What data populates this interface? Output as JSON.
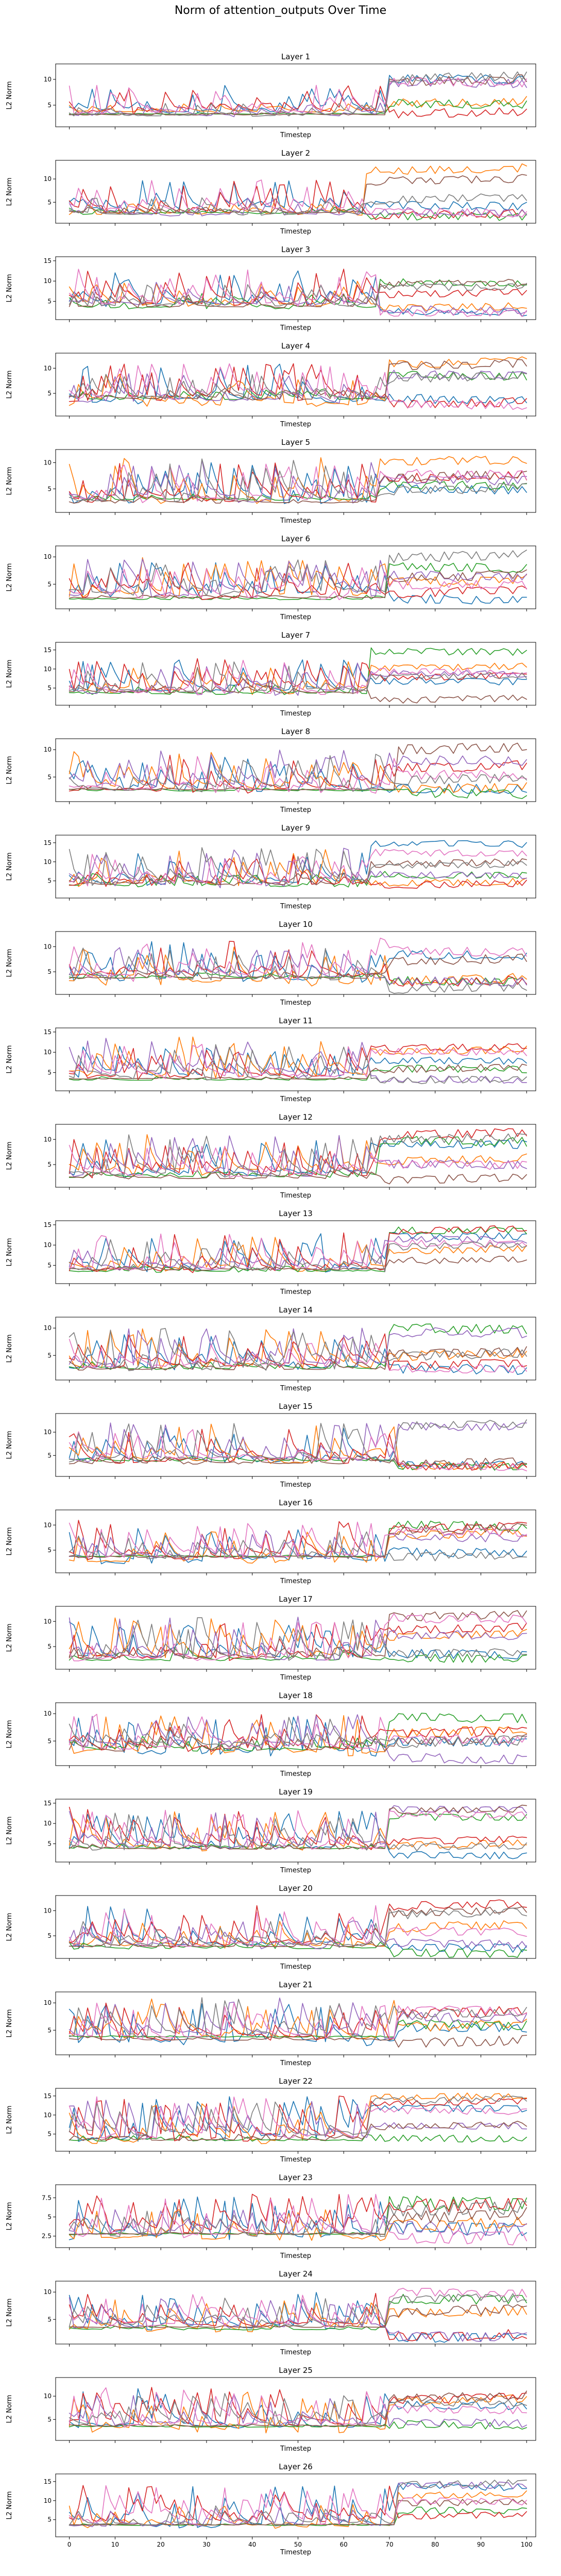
{
  "chart_data": {
    "type": "line",
    "title": "Norm of attention_outputs Over Time",
    "xlabel": "Timestep",
    "ylabel": "L2 Norm",
    "xlim": [
      -3,
      102
    ],
    "xticks": [
      0,
      10,
      20,
      30,
      40,
      50,
      60,
      70,
      80,
      90,
      100
    ],
    "grid": false,
    "colors": [
      "#1f77b4",
      "#ff7f0e",
      "#2ca02c",
      "#d62728",
      "#9467bd",
      "#8c564b",
      "#e377c2",
      "#7f7f7f"
    ],
    "subplots": [
      {
        "title": "Layer 1",
        "ylim": [
          0.8,
          13
        ],
        "yticks": [
          5,
          10
        ],
        "shift": 70,
        "profile": [
          [
            3,
            9
          ],
          [
            2.5,
            5.5
          ],
          [
            2.5,
            3.5
          ]
        ],
        "seed": 1
      },
      {
        "title": "Layer 2",
        "ylim": [
          0.5,
          14
        ],
        "yticks": [
          5,
          10
        ],
        "shift": 65,
        "profile": [
          [
            2,
            10
          ],
          [
            2,
            6
          ],
          [
            2,
            4
          ]
        ],
        "seed": 2
      },
      {
        "title": "Layer 3",
        "ylim": [
          0.5,
          16
        ],
        "yticks": [
          5,
          10,
          15
        ],
        "shift": 68,
        "profile": [
          [
            3,
            13
          ],
          [
            3,
            10
          ],
          [
            3,
            7
          ]
        ],
        "seed": 3
      },
      {
        "title": "Layer 4",
        "ylim": [
          0.5,
          13
        ],
        "yticks": [
          5,
          10
        ],
        "shift": 70,
        "profile": [
          [
            2,
            11
          ],
          [
            3,
            9
          ],
          [
            3,
            6
          ]
        ],
        "seed": 4
      },
      {
        "title": "Layer 5",
        "ylim": [
          0.5,
          12.5
        ],
        "yticks": [
          5,
          10
        ],
        "shift": 68,
        "profile": [
          [
            2,
            10
          ],
          [
            2,
            11
          ],
          [
            2,
            4
          ]
        ],
        "seed": 5
      },
      {
        "title": "Layer 6",
        "ylim": [
          0.5,
          12
        ],
        "yticks": [
          5,
          10
        ],
        "shift": 70,
        "profile": [
          [
            2,
            9
          ],
          [
            2,
            10
          ],
          [
            1.5,
            3
          ]
        ],
        "seed": 6
      },
      {
        "title": "Layer 7",
        "ylim": [
          0.5,
          17
        ],
        "yticks": [
          5,
          10,
          15
        ],
        "shift": 66,
        "profile": [
          [
            3,
            13
          ],
          [
            3,
            12
          ],
          [
            3,
            6
          ]
        ],
        "seed": 7
      },
      {
        "title": "Layer 8",
        "ylim": [
          0.5,
          12
        ],
        "yticks": [
          5,
          10
        ],
        "shift": 72,
        "profile": [
          [
            2,
            9
          ],
          [
            2,
            10
          ],
          [
            2,
            3
          ]
        ],
        "seed": 8
      },
      {
        "title": "Layer 9",
        "ylim": [
          0.5,
          17
        ],
        "yticks": [
          5,
          10,
          15
        ],
        "shift": 66,
        "profile": [
          [
            3,
            13
          ],
          [
            3,
            14
          ],
          [
            3,
            7
          ]
        ],
        "seed": 9
      },
      {
        "title": "Layer 10",
        "ylim": [
          0.5,
          13
        ],
        "yticks": [
          5,
          10
        ],
        "shift": 70,
        "profile": [
          [
            2,
            12
          ],
          [
            3,
            10
          ],
          [
            3,
            5
          ]
        ],
        "seed": 10
      },
      {
        "title": "Layer 11",
        "ylim": [
          0.5,
          16
        ],
        "yticks": [
          5,
          10,
          15
        ],
        "shift": 66,
        "profile": [
          [
            3,
            12
          ],
          [
            3,
            14
          ],
          [
            3,
            4
          ]
        ],
        "seed": 11
      },
      {
        "title": "Layer 12",
        "ylim": [
          0.5,
          13
        ],
        "yticks": [
          5,
          10
        ],
        "shift": 68,
        "profile": [
          [
            2,
            10
          ],
          [
            2,
            11
          ],
          [
            2,
            4
          ]
        ],
        "seed": 12
      },
      {
        "title": "Layer 13",
        "ylim": [
          0.5,
          16
        ],
        "yticks": [
          5,
          10,
          15
        ],
        "shift": 70,
        "profile": [
          [
            3,
            13
          ],
          [
            3,
            12
          ],
          [
            3,
            5
          ]
        ],
        "seed": 13
      },
      {
        "title": "Layer 14",
        "ylim": [
          0.5,
          12
        ],
        "yticks": [
          5,
          10
        ],
        "shift": 70,
        "profile": [
          [
            2,
            9
          ],
          [
            2,
            10
          ],
          [
            2,
            4
          ]
        ],
        "seed": 14
      },
      {
        "title": "Layer 15",
        "ylim": [
          0.5,
          14
        ],
        "yticks": [
          5,
          10
        ],
        "shift": 72,
        "profile": [
          [
            3,
            11
          ],
          [
            3,
            12
          ],
          [
            3,
            5
          ]
        ],
        "seed": 15
      },
      {
        "title": "Layer 16",
        "ylim": [
          0.5,
          13
        ],
        "yticks": [
          5,
          10
        ],
        "shift": 70,
        "profile": [
          [
            2,
            11
          ],
          [
            3,
            9
          ],
          [
            2,
            4
          ]
        ],
        "seed": 16
      },
      {
        "title": "Layer 17",
        "ylim": [
          0.5,
          13
        ],
        "yticks": [
          5,
          10
        ],
        "shift": 70,
        "profile": [
          [
            2,
            10
          ],
          [
            2,
            11
          ],
          [
            2,
            5
          ]
        ],
        "seed": 17
      },
      {
        "title": "Layer 18",
        "ylim": [
          0.5,
          12
        ],
        "yticks": [
          5,
          10
        ],
        "shift": 70,
        "profile": [
          [
            2,
            10
          ],
          [
            3,
            10
          ],
          [
            2,
            6
          ]
        ],
        "seed": 18
      },
      {
        "title": "Layer 19",
        "ylim": [
          0.5,
          16
        ],
        "yticks": [
          5,
          10,
          15
        ],
        "shift": 70,
        "profile": [
          [
            2,
            14
          ],
          [
            3,
            13
          ],
          [
            2,
            5
          ]
        ],
        "seed": 19
      },
      {
        "title": "Layer 20",
        "ylim": [
          0.5,
          13
        ],
        "yticks": [
          5,
          10
        ],
        "shift": 70,
        "profile": [
          [
            2,
            11
          ],
          [
            2,
            8
          ],
          [
            2,
            4
          ]
        ],
        "seed": 20
      },
      {
        "title": "Layer 21",
        "ylim": [
          0.5,
          12
        ],
        "yticks": [
          5,
          10
        ],
        "shift": 72,
        "profile": [
          [
            2,
            10
          ],
          [
            3,
            11
          ],
          [
            2,
            4
          ]
        ],
        "seed": 21
      },
      {
        "title": "Layer 22",
        "ylim": [
          0.5,
          17
        ],
        "yticks": [
          5,
          10,
          15
        ],
        "shift": 66,
        "profile": [
          [
            2,
            15
          ],
          [
            3,
            14
          ],
          [
            2,
            5
          ]
        ],
        "seed": 22
      },
      {
        "title": "Layer 23",
        "ylim": [
          1.0,
          9.2
        ],
        "yticks": [
          2.5,
          5.0,
          7.5
        ],
        "shift": 70,
        "profile": [
          [
            1.5,
            8
          ],
          [
            2,
            6
          ],
          [
            1.5,
            3
          ]
        ],
        "seed": 23
      },
      {
        "title": "Layer 24",
        "ylim": [
          0.5,
          12
        ],
        "yticks": [
          5,
          10
        ],
        "shift": 70,
        "profile": [
          [
            2,
            10
          ],
          [
            3,
            9
          ],
          [
            2,
            4
          ]
        ],
        "seed": 24
      },
      {
        "title": "Layer 25",
        "ylim": [
          0.5,
          14
        ],
        "yticks": [
          5,
          10
        ],
        "shift": 70,
        "profile": [
          [
            2,
            12
          ],
          [
            3,
            11
          ],
          [
            2,
            4
          ]
        ],
        "seed": 25
      },
      {
        "title": "Layer 26",
        "ylim": [
          0.5,
          17
        ],
        "yticks": [
          5,
          10,
          15
        ],
        "shift": 72,
        "profile": [
          [
            2,
            14
          ],
          [
            3,
            9
          ],
          [
            2,
            4
          ]
        ],
        "seed": 26
      }
    ]
  }
}
